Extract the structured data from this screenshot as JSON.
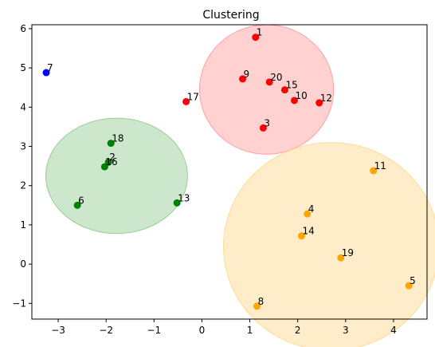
{
  "chart_data": {
    "type": "scatter",
    "title": "Clustering",
    "xlabel": "",
    "ylabel": "",
    "xlim": [
      -3.55,
      4.7
    ],
    "ylim": [
      -1.4,
      6.1
    ],
    "x_ticks": [
      -3,
      -2,
      -1,
      0,
      1,
      2,
      3,
      4
    ],
    "x_tick_labels": [
      "−3",
      "−2",
      "−1",
      "0",
      "1",
      "2",
      "3",
      "4"
    ],
    "y_ticks": [
      -1,
      0,
      1,
      2,
      3,
      4,
      5,
      6
    ],
    "y_tick_labels": [
      "−1",
      "0",
      "1",
      "2",
      "3",
      "4",
      "5",
      "6"
    ],
    "grid": false,
    "clusters": [
      {
        "color": "#ff0000",
        "fill": "#ff9999",
        "center": [
          1.35,
          4.45
        ],
        "rx": 1.4,
        "ry": 1.65
      },
      {
        "color": "#008000",
        "fill": "#8fc98f",
        "center": [
          -1.78,
          2.25
        ],
        "rx": 1.48,
        "ry": 1.47
      },
      {
        "color": "#ffa500",
        "fill": "#ffd88a",
        "center": [
          2.7,
          0.45
        ],
        "rx": 2.25,
        "ry": 2.65
      }
    ],
    "points": [
      {
        "label": "1",
        "x": 1.12,
        "y": 5.78,
        "color": "#ff0000"
      },
      {
        "label": "2",
        "x": -1.95,
        "y": 2.6,
        "color": "#008000"
      },
      {
        "label": "3",
        "x": 1.28,
        "y": 3.47,
        "color": "#ff0000"
      },
      {
        "label": "4",
        "x": 2.2,
        "y": 1.28,
        "color": "#ffa500"
      },
      {
        "label": "5",
        "x": 4.32,
        "y": -0.55,
        "color": "#ffa500"
      },
      {
        "label": "6",
        "x": -2.6,
        "y": 1.5,
        "color": "#008000"
      },
      {
        "label": "7",
        "x": -3.25,
        "y": 4.88,
        "color": "#0000ff"
      },
      {
        "label": "8",
        "x": 1.15,
        "y": -1.07,
        "color": "#ffa500"
      },
      {
        "label": "9",
        "x": 0.85,
        "y": 4.72,
        "color": "#ff0000"
      },
      {
        "label": "10",
        "x": 1.93,
        "y": 4.17,
        "color": "#ff0000"
      },
      {
        "label": "11",
        "x": 3.58,
        "y": 2.38,
        "color": "#ffa500"
      },
      {
        "label": "12",
        "x": 2.45,
        "y": 4.11,
        "color": "#ff0000"
      },
      {
        "label": "13",
        "x": -0.52,
        "y": 1.56,
        "color": "#008000"
      },
      {
        "label": "14",
        "x": 2.08,
        "y": 0.72,
        "color": "#ffa500"
      },
      {
        "label": "15",
        "x": 1.73,
        "y": 4.44,
        "color": "#ff0000"
      },
      {
        "label": "16",
        "x": -2.03,
        "y": 2.48,
        "color": "#008000"
      },
      {
        "label": "17",
        "x": -0.33,
        "y": 4.14,
        "color": "#ff0000"
      },
      {
        "label": "18",
        "x": -1.9,
        "y": 3.08,
        "color": "#008000"
      },
      {
        "label": "19",
        "x": 2.9,
        "y": 0.16,
        "color": "#ffa500"
      },
      {
        "label": "20",
        "x": 1.41,
        "y": 4.64,
        "color": "#ff0000"
      }
    ]
  }
}
